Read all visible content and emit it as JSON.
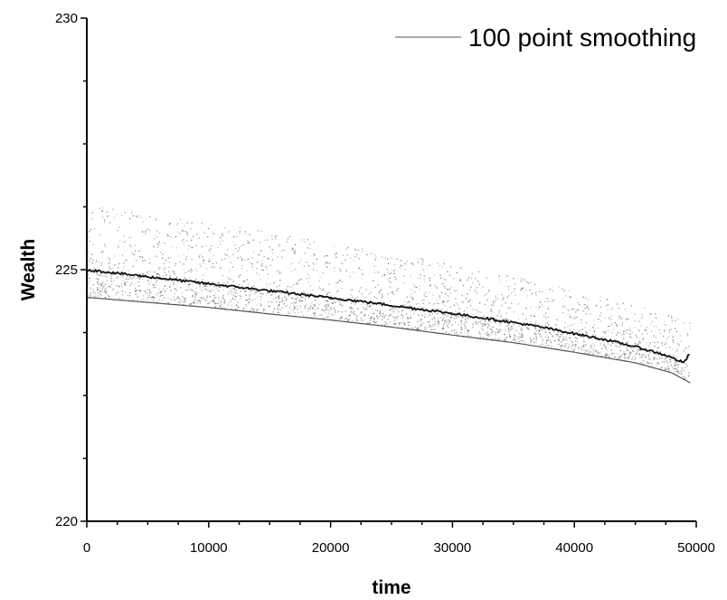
{
  "chart_data": {
    "type": "scatter",
    "title": "",
    "xlabel": "time",
    "ylabel": "Wealth",
    "xlim": [
      0,
      50000
    ],
    "ylim": [
      220,
      230
    ],
    "x_ticks": [
      0,
      10000,
      20000,
      30000,
      40000,
      50000
    ],
    "x_tick_labels": [
      "0",
      "10000",
      "20000",
      "30000",
      "40000",
      "50000"
    ],
    "y_ticks": [
      220,
      225,
      230
    ],
    "y_tick_labels": [
      "220",
      "225",
      "230"
    ],
    "grid": false,
    "legend": {
      "position": "top-right",
      "entries": [
        "100 point smoothing"
      ]
    },
    "series": [
      {
        "name": "100 point smoothing",
        "kind": "line",
        "color": "#111111",
        "x": [
          0,
          2500,
          5000,
          7500,
          10000,
          12500,
          15000,
          17500,
          20000,
          22500,
          25000,
          27500,
          30000,
          32500,
          35000,
          37500,
          40000,
          42500,
          45000,
          47500,
          49000,
          49500
        ],
        "y": [
          225.0,
          224.93,
          224.86,
          224.79,
          224.72,
          224.65,
          224.58,
          224.51,
          224.44,
          224.37,
          224.29,
          224.21,
          224.13,
          224.04,
          223.95,
          223.85,
          223.73,
          223.61,
          223.47,
          223.3,
          223.15,
          223.35
        ]
      },
      {
        "kind": "scatter-band",
        "color": "#444444",
        "x": [
          0,
          5000,
          10000,
          15000,
          20000,
          25000,
          30000,
          35000,
          40000,
          45000,
          48000,
          49500
        ],
        "y_upper": [
          226.3,
          226.12,
          225.94,
          225.76,
          225.56,
          225.35,
          225.12,
          224.88,
          224.6,
          224.3,
          224.1,
          224.0
        ],
        "y_lower": [
          224.45,
          224.35,
          224.25,
          224.12,
          224.0,
          223.86,
          223.7,
          223.55,
          223.36,
          223.15,
          222.95,
          222.75
        ]
      }
    ]
  }
}
